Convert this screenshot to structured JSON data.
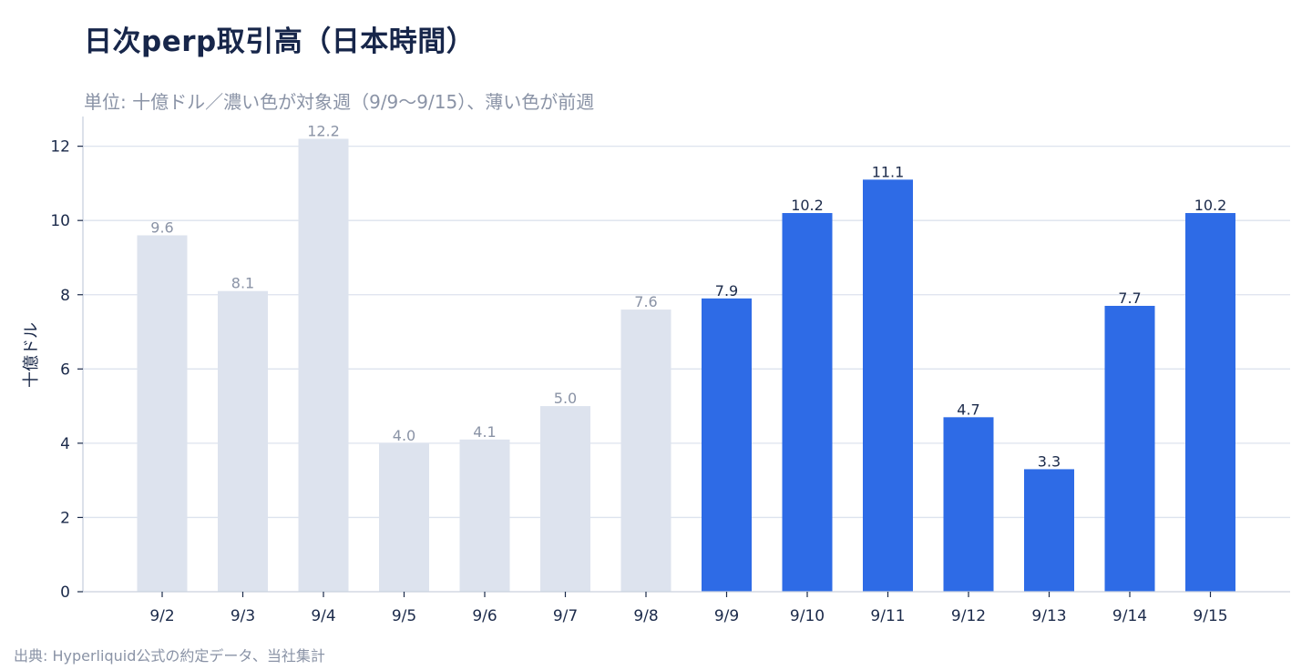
{
  "title": "日次perp取引高（日本時間）",
  "subtitle": "単位: 十億ドル／濃い色が対象週（9/9〜9/15）、薄い色が前週",
  "source": "出典: Hyperliquid公式の約定データ、当社集計",
  "colors": {
    "target_week": "#2e6be6",
    "previous_week": "#dde3ee",
    "label_target": "#1b2a4a",
    "label_previous": "#8a93a6",
    "grid": "#dde3ee"
  },
  "chart_data": {
    "type": "bar",
    "categories": [
      "9/2",
      "9/3",
      "9/4",
      "9/5",
      "9/6",
      "9/7",
      "9/8",
      "9/9",
      "9/10",
      "9/11",
      "9/12",
      "9/13",
      "9/14",
      "9/15"
    ],
    "values": [
      9.6,
      8.1,
      12.2,
      4.0,
      4.1,
      5.0,
      7.6,
      7.9,
      10.2,
      11.1,
      4.7,
      3.3,
      7.7,
      10.2
    ],
    "data_labels": [
      "9.6",
      "8.1",
      "12.2",
      "4.0",
      "4.1",
      "5.0",
      "7.6",
      "7.9",
      "10.2",
      "11.1",
      "4.7",
      "3.3",
      "7.7",
      "10.2"
    ],
    "highlight": [
      false,
      false,
      false,
      false,
      false,
      false,
      false,
      true,
      true,
      true,
      true,
      true,
      true,
      true
    ],
    "ylabel": "十億ドル",
    "xlabel": "",
    "ylim": [
      0,
      12.8
    ],
    "yticks": [
      0,
      2,
      4,
      6,
      8,
      10,
      12
    ],
    "grid": "horizontal"
  }
}
